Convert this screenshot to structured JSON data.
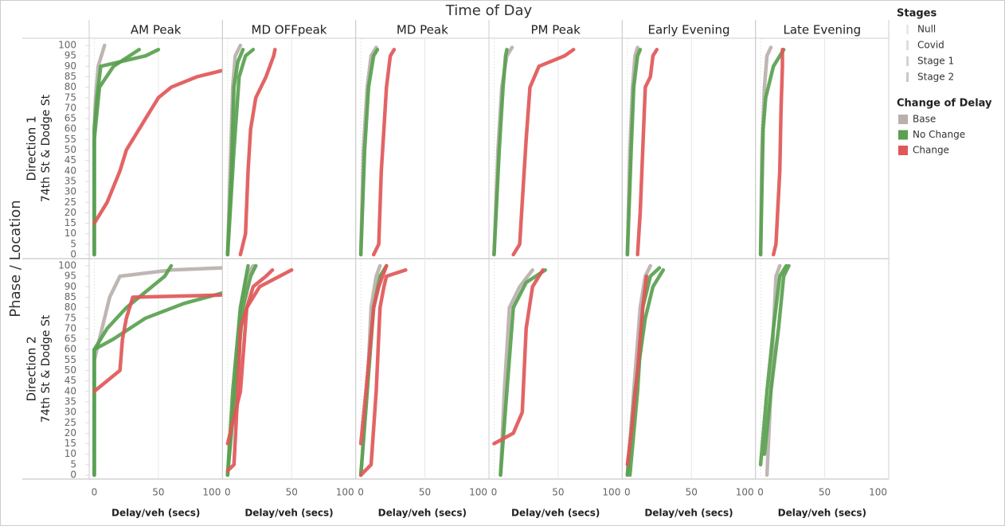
{
  "chart_data": {
    "type": "line",
    "title": "Time of Day",
    "row_title": "Phase / Location",
    "columns": [
      "AM Peak",
      "MD OFFpeak",
      "MD Peak",
      "PM Peak",
      "Early Evening",
      "Late Evening"
    ],
    "rows": [
      {
        "label": "Direction 1",
        "sublabel": "74th St & Dodge St"
      },
      {
        "label": "Direction 2",
        "sublabel": "74th St & Dodge St"
      }
    ],
    "x_label": "Delay/veh (secs)",
    "xlim": [
      -4,
      100
    ],
    "xticks": [
      0,
      50,
      100
    ],
    "ylim": [
      0,
      100
    ],
    "yticks": [
      0,
      5,
      10,
      15,
      20,
      25,
      30,
      35,
      40,
      45,
      50,
      55,
      60,
      65,
      70,
      75,
      80,
      85,
      90,
      95,
      100
    ],
    "stages_legend": {
      "title": "Stages",
      "items": [
        {
          "name": "Null",
          "color": "#e8e8e8"
        },
        {
          "name": "Covid",
          "color": "#dddddd"
        },
        {
          "name": "Stage 1",
          "color": "#d2d2d2"
        },
        {
          "name": "Stage 2",
          "color": "#c8c8c8"
        }
      ]
    },
    "color_legend": {
      "title": "Change of Delay",
      "items": [
        {
          "name": "Base",
          "color": "#bab0ac"
        },
        {
          "name": "No Change",
          "color": "#59a14f"
        },
        {
          "name": "Change",
          "color": "#e15759"
        }
      ]
    },
    "panels": [
      [
        {
          "series": [
            {
              "color": "#bab0ac",
              "x": [
                0,
                0,
                1,
                3,
                8
              ],
              "y": [
                0,
                60,
                75,
                90,
                100
              ]
            },
            {
              "color": "#59a14f",
              "x": [
                0,
                0,
                2,
                5,
                40,
                50
              ],
              "y": [
                0,
                60,
                75,
                90,
                95,
                98
              ]
            },
            {
              "color": "#59a14f",
              "x": [
                0,
                0,
                4,
                15,
                35
              ],
              "y": [
                0,
                55,
                80,
                90,
                98
              ]
            },
            {
              "color": "#e15759",
              "x": [
                0,
                10,
                20,
                25,
                30,
                35,
                40,
                50,
                60,
                80,
                100
              ],
              "y": [
                15,
                25,
                40,
                50,
                55,
                60,
                65,
                75,
                80,
                85,
                88
              ]
            }
          ]
        },
        {
          "series": [
            {
              "color": "#bab0ac",
              "x": [
                0,
                2,
                4,
                6,
                10
              ],
              "y": [
                0,
                40,
                80,
                95,
                100
              ]
            },
            {
              "color": "#59a14f",
              "x": [
                0,
                3,
                5,
                8,
                12
              ],
              "y": [
                0,
                40,
                80,
                92,
                98
              ]
            },
            {
              "color": "#59a14f",
              "x": [
                0,
                5,
                9,
                14,
                20
              ],
              "y": [
                0,
                50,
                85,
                95,
                98
              ]
            },
            {
              "color": "#e15759",
              "x": [
                10,
                14,
                16,
                18,
                22,
                30,
                36,
                37
              ],
              "y": [
                0,
                10,
                40,
                60,
                75,
                85,
                95,
                98
              ]
            }
          ]
        },
        {
          "series": [
            {
              "color": "#bab0ac",
              "x": [
                0,
                2,
                5,
                8,
                12
              ],
              "y": [
                0,
                50,
                80,
                95,
                99
              ]
            },
            {
              "color": "#59a14f",
              "x": [
                0,
                3,
                6,
                10,
                13
              ],
              "y": [
                0,
                50,
                80,
                95,
                98
              ]
            },
            {
              "color": "#e15759",
              "x": [
                10,
                14,
                16,
                18,
                20,
                23,
                26
              ],
              "y": [
                0,
                5,
                40,
                60,
                80,
                95,
                98
              ]
            }
          ]
        },
        {
          "series": [
            {
              "color": "#bab0ac",
              "x": [
                0,
                3,
                6,
                10,
                14
              ],
              "y": [
                0,
                50,
                80,
                95,
                99
              ]
            },
            {
              "color": "#59a14f",
              "x": [
                0,
                4,
                7,
                9,
                10
              ],
              "y": [
                0,
                50,
                80,
                95,
                98
              ]
            },
            {
              "color": "#e15759",
              "x": [
                15,
                20,
                22,
                25,
                28,
                35,
                55,
                62
              ],
              "y": [
                0,
                5,
                25,
                55,
                80,
                90,
                95,
                98
              ]
            }
          ]
        },
        {
          "series": [
            {
              "color": "#bab0ac",
              "x": [
                0,
                2,
                4,
                6,
                8
              ],
              "y": [
                0,
                50,
                80,
                95,
                99
              ]
            },
            {
              "color": "#59a14f",
              "x": [
                0,
                3,
                5,
                8,
                10
              ],
              "y": [
                0,
                50,
                80,
                95,
                98
              ]
            },
            {
              "color": "#e15759",
              "x": [
                8,
                10,
                12,
                14,
                18,
                20,
                23
              ],
              "y": [
                0,
                20,
                50,
                80,
                85,
                95,
                98
              ]
            }
          ]
        },
        {
          "series": [
            {
              "color": "#bab0ac",
              "x": [
                0,
                1,
                3,
                5,
                8
              ],
              "y": [
                0,
                50,
                80,
                95,
                99
              ]
            },
            {
              "color": "#59a14f",
              "x": [
                0,
                2,
                4,
                10,
                18
              ],
              "y": [
                0,
                60,
                75,
                90,
                98
              ]
            },
            {
              "color": "#e15759",
              "x": [
                10,
                12,
                15,
                16,
                17,
                17
              ],
              "y": [
                0,
                5,
                40,
                70,
                90,
                98
              ]
            }
          ]
        }
      ],
      [
        {
          "series": [
            {
              "color": "#bab0ac",
              "x": [
                0,
                0,
                4,
                8,
                12,
                20,
                60,
                100
              ],
              "y": [
                0,
                55,
                65,
                75,
                85,
                95,
                98,
                99
              ]
            },
            {
              "color": "#59a14f",
              "x": [
                0,
                0,
                10,
                25,
                45,
                55,
                60
              ],
              "y": [
                0,
                60,
                70,
                80,
                90,
                95,
                100
              ]
            },
            {
              "color": "#59a14f",
              "x": [
                0,
                0,
                15,
                40,
                70,
                100
              ],
              "y": [
                0,
                60,
                65,
                75,
                82,
                87
              ]
            },
            {
              "color": "#e15759",
              "x": [
                0,
                10,
                20,
                22,
                25,
                30,
                100
              ],
              "y": [
                40,
                45,
                50,
                65,
                75,
                85,
                86
              ]
            }
          ]
        },
        {
          "series": [
            {
              "color": "#bab0ac",
              "x": [
                0,
                5,
                10,
                15,
                20
              ],
              "y": [
                0,
                40,
                80,
                95,
                100
              ]
            },
            {
              "color": "#59a14f",
              "x": [
                0,
                6,
                12,
                18,
                22
              ],
              "y": [
                0,
                40,
                80,
                95,
                100
              ]
            },
            {
              "color": "#59a14f",
              "x": [
                0,
                4,
                10,
                16
              ],
              "y": [
                0,
                40,
                80,
                100
              ]
            },
            {
              "color": "#e15759",
              "x": [
                0,
                5,
                8,
                10,
                15,
                20,
                30,
                35
              ],
              "y": [
                2,
                5,
                40,
                70,
                80,
                90,
                95,
                98
              ]
            },
            {
              "color": "#e15759",
              "x": [
                0,
                10,
                15,
                25,
                50
              ],
              "y": [
                15,
                40,
                80,
                90,
                98
              ]
            }
          ]
        },
        {
          "series": [
            {
              "color": "#bab0ac",
              "x": [
                0,
                5,
                8,
                12,
                15
              ],
              "y": [
                0,
                40,
                80,
                95,
                100
              ]
            },
            {
              "color": "#59a14f",
              "x": [
                0,
                5,
                10,
                15,
                20
              ],
              "y": [
                0,
                40,
                80,
                95,
                100
              ]
            },
            {
              "color": "#e15759",
              "x": [
                0,
                8,
                12,
                15,
                18,
                20,
                25,
                35
              ],
              "y": [
                0,
                5,
                40,
                80,
                90,
                95,
                96,
                98
              ]
            },
            {
              "color": "#e15759",
              "x": [
                0,
                4,
                10,
                14,
                20
              ],
              "y": [
                15,
                40,
                80,
                90,
                100
              ]
            }
          ]
        },
        {
          "series": [
            {
              "color": "#bab0ac",
              "x": [
                5,
                8,
                12,
                20,
                30
              ],
              "y": [
                0,
                40,
                80,
                90,
                98
              ]
            },
            {
              "color": "#59a14f",
              "x": [
                5,
                10,
                15,
                25,
                40
              ],
              "y": [
                0,
                40,
                80,
                92,
                98
              ]
            },
            {
              "color": "#e15759",
              "x": [
                0,
                15,
                22,
                25,
                30,
                38
              ],
              "y": [
                15,
                20,
                30,
                70,
                90,
                98
              ]
            }
          ]
        },
        {
          "series": [
            {
              "color": "#bab0ac",
              "x": [
                0,
                5,
                10,
                14,
                18
              ],
              "y": [
                0,
                40,
                80,
                95,
                100
              ]
            },
            {
              "color": "#59a14f",
              "x": [
                2,
                8,
                12,
                18,
                25
              ],
              "y": [
                0,
                40,
                80,
                95,
                99
              ]
            },
            {
              "color": "#59a14f",
              "x": [
                0,
                6,
                14,
                20,
                28
              ],
              "y": [
                0,
                40,
                75,
                90,
                98
              ]
            },
            {
              "color": "#e15759",
              "x": [
                0,
                3,
                8,
                12,
                15
              ],
              "y": [
                5,
                20,
                50,
                80,
                95
              ]
            }
          ]
        },
        {
          "series": [
            {
              "color": "#bab0ac",
              "x": [
                5,
                8,
                10,
                12,
                15
              ],
              "y": [
                0,
                40,
                70,
                95,
                100
              ]
            },
            {
              "color": "#59a14f",
              "x": [
                0,
                5,
                10,
                15,
                20
              ],
              "y": [
                5,
                40,
                70,
                95,
                100
              ]
            },
            {
              "color": "#59a14f",
              "x": [
                3,
                8,
                14,
                18,
                22
              ],
              "y": [
                10,
                40,
                70,
                95,
                100
              ]
            }
          ]
        }
      ]
    ]
  }
}
